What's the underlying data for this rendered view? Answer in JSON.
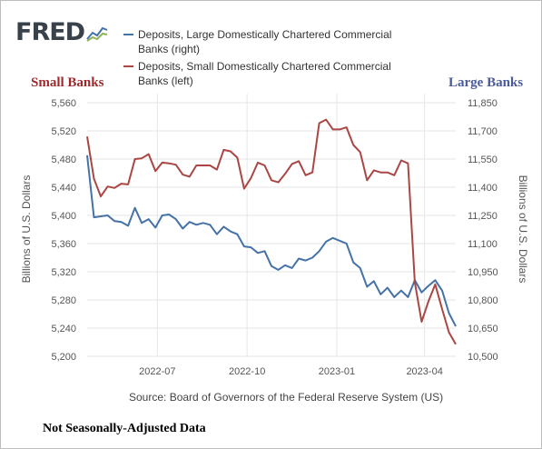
{
  "header": {
    "logo_text": "FRED",
    "logo_mark": "sparkline-icon"
  },
  "legend": [
    {
      "label": "Deposits, Large Domestically Chartered Commercial Banks (right)",
      "color": "#4572a7"
    },
    {
      "label": "Deposits, Small Domestically Chartered Commercial Banks (left)",
      "color": "#aa4643"
    }
  ],
  "annotations": {
    "left_title": "Small Banks",
    "right_title": "Large Banks",
    "footnote": "Not Seasonally-Adjusted Data"
  },
  "source": "Source: Board of Governors of the Federal Reserve System (US)",
  "chart_data": {
    "type": "line",
    "x_unit": "weekly",
    "x_range": [
      "2022-04-20",
      "2023-05-03"
    ],
    "x_tick_labels": [
      "2022-07",
      "2022-10",
      "2023-01",
      "2023-04"
    ],
    "x_ticks": [
      "2022-07-01",
      "2022-10-01",
      "2023-01-01",
      "2023-04-01"
    ],
    "left_axis": {
      "label": "Billions of U.S. Dollars",
      "ylim": [
        5200,
        5560
      ],
      "ticks": [
        5200,
        5240,
        5280,
        5320,
        5360,
        5400,
        5440,
        5480,
        5520,
        5560
      ],
      "tick_labels": [
        "5,200",
        "5,240",
        "5,280",
        "5,320",
        "5,360",
        "5,400",
        "5,440",
        "5,480",
        "5,520",
        "5,560"
      ]
    },
    "right_axis": {
      "label": "Billions of U.S. Dollars",
      "ylim": [
        10500,
        11850
      ],
      "ticks": [
        10500,
        10650,
        10800,
        10950,
        11100,
        11250,
        11400,
        11550,
        11700,
        11850
      ],
      "tick_labels": [
        "10,500",
        "10,650",
        "10,800",
        "10,950",
        "11,100",
        "11,250",
        "11,400",
        "11,550",
        "11,700",
        "11,850"
      ]
    },
    "grid": true,
    "x": [
      "2022-04-20",
      "2022-04-27",
      "2022-05-04",
      "2022-05-11",
      "2022-05-18",
      "2022-05-25",
      "2022-06-01",
      "2022-06-08",
      "2022-06-15",
      "2022-06-22",
      "2022-06-29",
      "2022-07-06",
      "2022-07-13",
      "2022-07-20",
      "2022-07-27",
      "2022-08-03",
      "2022-08-10",
      "2022-08-17",
      "2022-08-24",
      "2022-08-31",
      "2022-09-07",
      "2022-09-14",
      "2022-09-21",
      "2022-09-28",
      "2022-10-05",
      "2022-10-12",
      "2022-10-19",
      "2022-10-26",
      "2022-11-02",
      "2022-11-09",
      "2022-11-16",
      "2022-11-23",
      "2022-11-30",
      "2022-12-07",
      "2022-12-14",
      "2022-12-21",
      "2022-12-28",
      "2023-01-04",
      "2023-01-11",
      "2023-01-18",
      "2023-01-25",
      "2023-02-01",
      "2023-02-08",
      "2023-02-15",
      "2023-02-22",
      "2023-03-01",
      "2023-03-08",
      "2023-03-15",
      "2023-03-22",
      "2023-03-29",
      "2023-04-05",
      "2023-04-12",
      "2023-04-19",
      "2023-04-26",
      "2023-05-03"
    ],
    "series": [
      {
        "name": "Deposits, Large Domestically Chartered Commercial Banks (right)",
        "axis": "right",
        "color": "#4572a7",
        "values": [
          11570,
          11240,
          11245,
          11250,
          11220,
          11215,
          11195,
          11290,
          11210,
          11230,
          11185,
          11250,
          11255,
          11230,
          11180,
          11215,
          11200,
          11210,
          11200,
          11150,
          11190,
          11165,
          11150,
          11085,
          11080,
          11050,
          11060,
          10980,
          10960,
          10985,
          10970,
          11020,
          11010,
          11025,
          11060,
          11110,
          11130,
          11115,
          11100,
          11000,
          10970,
          10870,
          10900,
          10830,
          10865,
          10815,
          10850,
          10815,
          10905,
          10840,
          10875,
          10905,
          10850,
          10730,
          10660
        ]
      },
      {
        "name": "Deposits, Small Domestically Chartered Commercial Banks (left)",
        "axis": "left",
        "color": "#aa4643",
        "values": [
          5512,
          5452,
          5427,
          5441,
          5439,
          5445,
          5444,
          5480,
          5481,
          5487,
          5463,
          5475,
          5474,
          5472,
          5458,
          5455,
          5471,
          5471,
          5471,
          5465,
          5493,
          5491,
          5482,
          5438,
          5453,
          5475,
          5471,
          5450,
          5447,
          5459,
          5473,
          5477,
          5457,
          5461,
          5531,
          5536,
          5522,
          5522,
          5525,
          5500,
          5490,
          5450,
          5464,
          5461,
          5461,
          5457,
          5478,
          5474,
          5305,
          5249,
          5278,
          5302,
          5267,
          5234,
          5217
        ]
      }
    ]
  }
}
